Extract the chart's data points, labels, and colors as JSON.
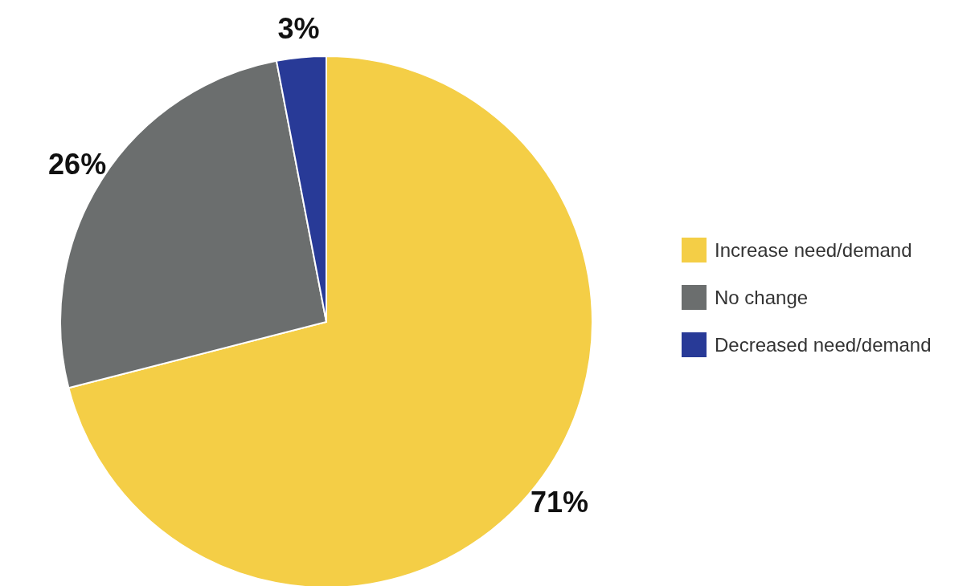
{
  "chart_data": {
    "type": "pie",
    "categories": [
      "Increase need/demand",
      "No change",
      "Decreased need/demand"
    ],
    "values": [
      71,
      26,
      3
    ],
    "colors": [
      "#f4ce46",
      "#6b6e6e",
      "#283a97"
    ],
    "value_labels": [
      "71%",
      "26%",
      "3%"
    ],
    "legend": "right"
  }
}
